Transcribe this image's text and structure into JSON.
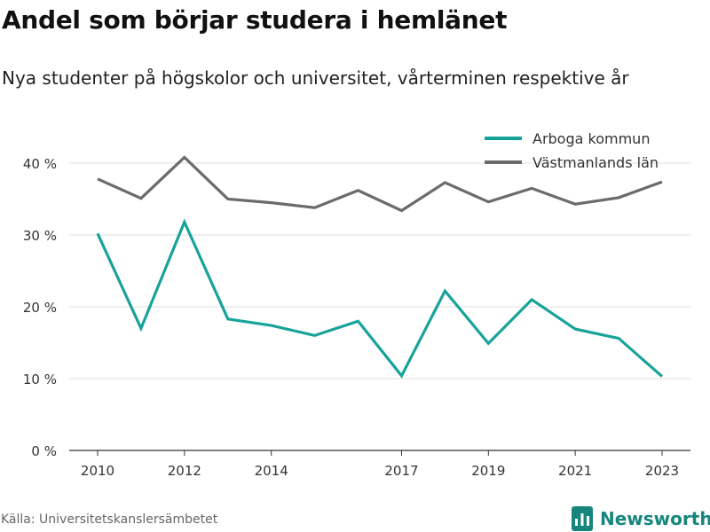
{
  "title": "Andel som börjar studera i hemlänet",
  "subtitle": "Nya studenter på högskolor och universitet, vårterminen respektive år",
  "source": "Källa: Universitetskanslersämbetet",
  "brand": "Newsworthy",
  "colors": {
    "arboga": "#18a39a",
    "vastmanland": "#6b6b6d",
    "brand": "#16867d",
    "grid": "#dddddd"
  },
  "chart_data": {
    "type": "line",
    "title": "",
    "xlabel": "",
    "ylabel": "",
    "x": [
      2010,
      2011,
      2012,
      2013,
      2014,
      2015,
      2016,
      2017,
      2018,
      2019,
      2020,
      2021,
      2022,
      2023
    ],
    "x_ticks": [
      2010,
      2012,
      2014,
      2017,
      2019,
      2021,
      2023
    ],
    "y_ticks": [
      0,
      10,
      20,
      30,
      40
    ],
    "y_tick_labels": [
      "0 %",
      "10 %",
      "20 %",
      "30 %",
      "40 %"
    ],
    "ylim": [
      0,
      40
    ],
    "grid": true,
    "legend_position": "top-right",
    "series": [
      {
        "name": "Arboga kommun",
        "color": "#18a39a",
        "values": [
          30.2,
          17.0,
          31.8,
          18.3,
          17.4,
          16.0,
          18.0,
          10.4,
          22.2,
          14.9,
          21.0,
          16.9,
          15.6,
          10.3
        ]
      },
      {
        "name": "Västmanlands län",
        "color": "#6b6b6d",
        "values": [
          37.8,
          35.1,
          40.8,
          35.0,
          34.5,
          33.8,
          36.2,
          33.4,
          37.3,
          34.6,
          36.5,
          34.3,
          35.2,
          37.4
        ]
      }
    ]
  }
}
